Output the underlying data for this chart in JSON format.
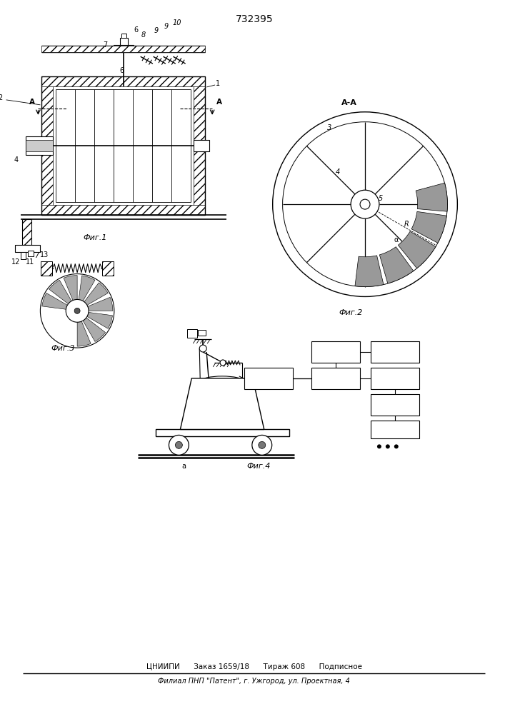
{
  "title": "732395",
  "fig1_label": "Фиг.1",
  "fig2_label": "Фиг.2",
  "fig3_label": "Фиг.3",
  "fig4_label": "Фиг.4",
  "section_label": "А-А",
  "footer_line1": "ЦНИИПИ      Заказ 1659/18      Тираж 608      Подписное",
  "footer_line2": "Филиал ПНП \"Патент\", г. Ужгород, ул. Проектная, 4",
  "bg_color": "#ffffff",
  "line_color": "#000000",
  "hatch_color": "#000000"
}
